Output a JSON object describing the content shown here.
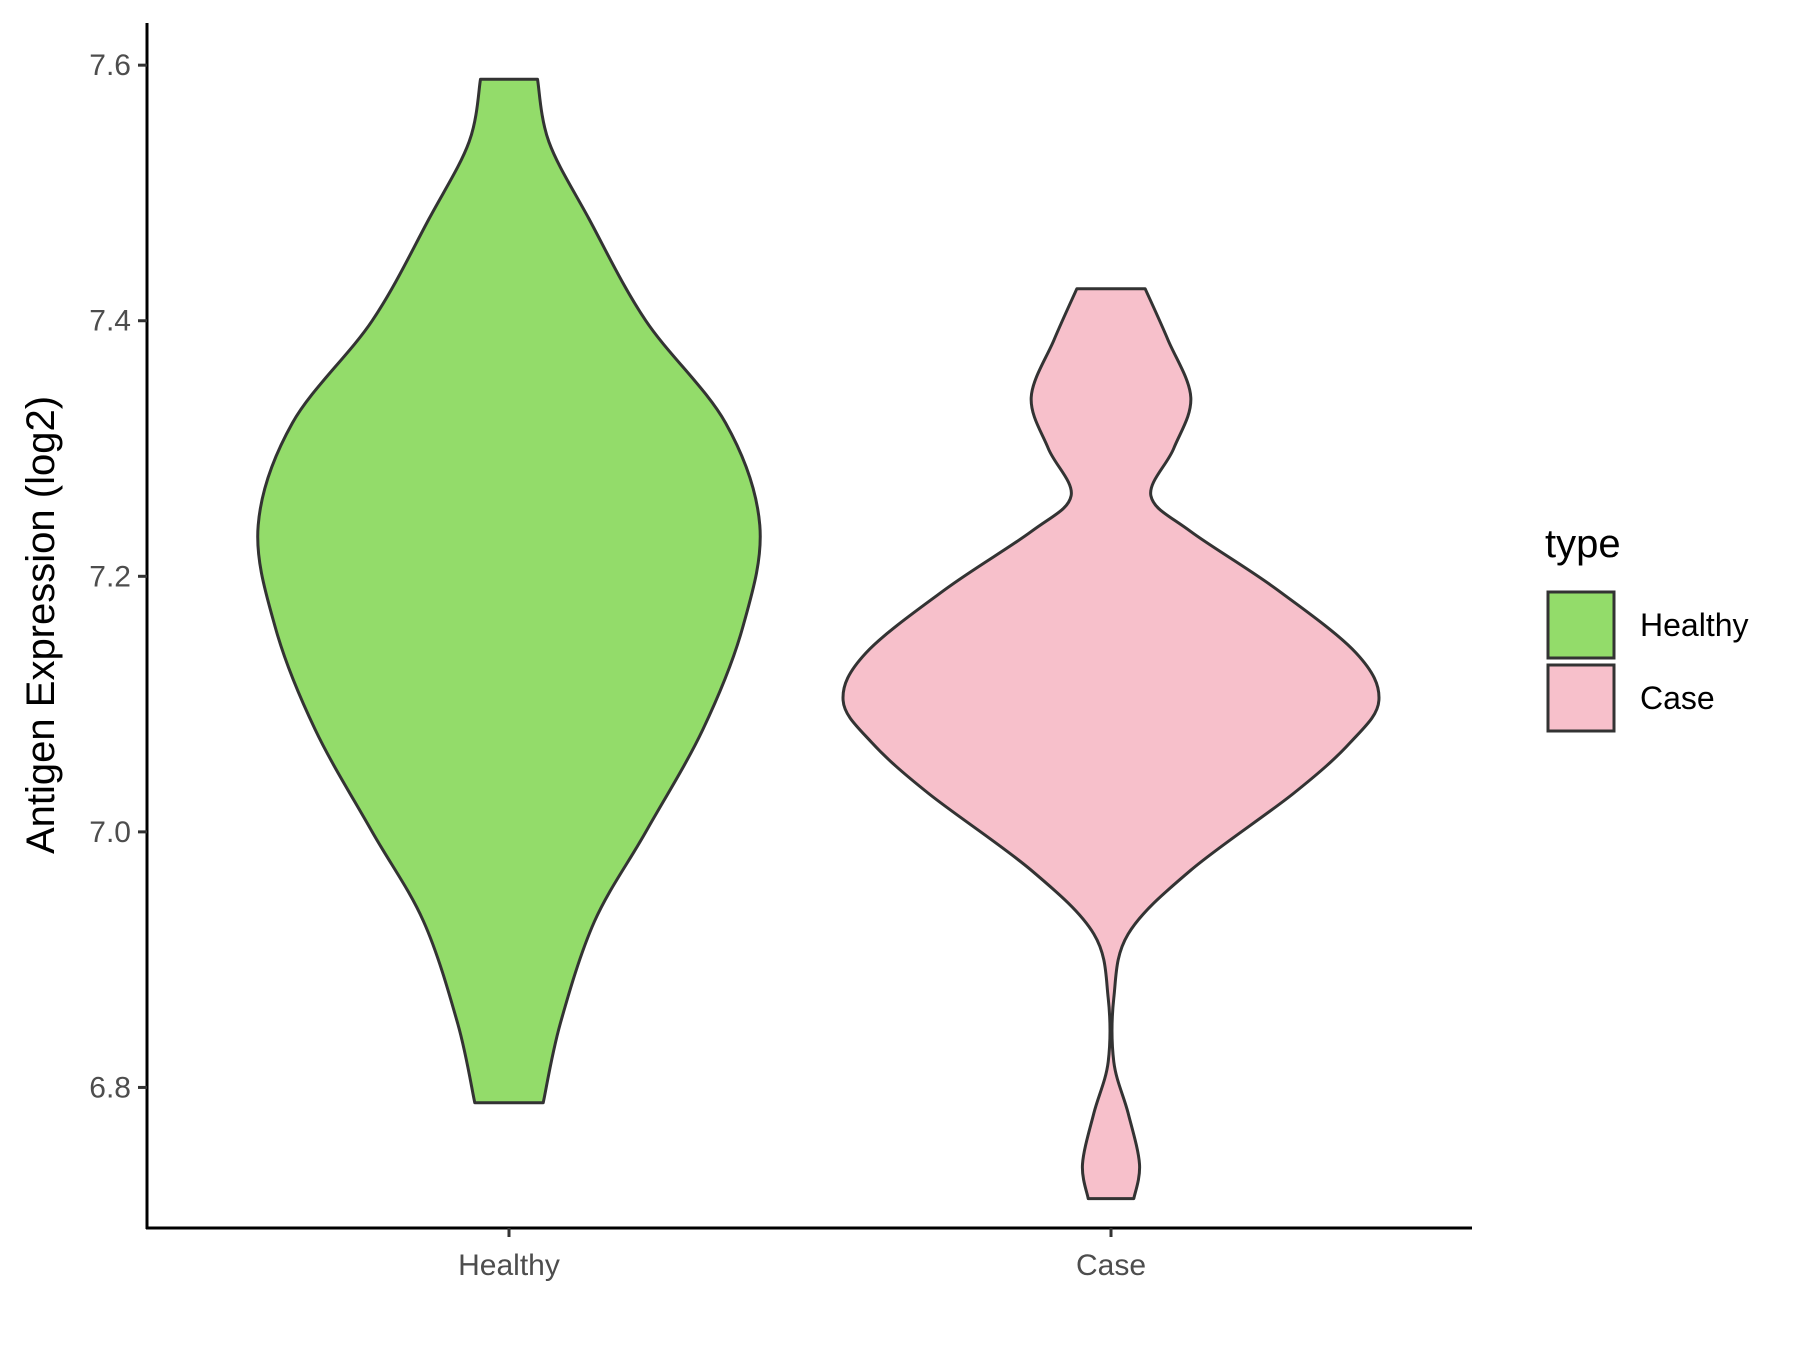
{
  "chart_data": {
    "type": "violin",
    "title": "",
    "xlabel": "",
    "ylabel": "Antigen Expression (log2)",
    "ylim": [
      6.69,
      7.633
    ],
    "yticks": [
      6.8,
      7.0,
      7.2,
      7.4,
      7.6
    ],
    "ytick_labels": [
      "6.8",
      "7.0",
      "7.2",
      "7.4",
      "7.6"
    ],
    "categories": [
      "Healthy",
      "Case"
    ],
    "grid": false,
    "legend": {
      "title": "type",
      "position": "right",
      "entries": [
        {
          "label": "Healthy",
          "color": "#93dc6a"
        },
        {
          "label": "Case",
          "color": "#f7c0cb"
        }
      ]
    },
    "series": [
      {
        "name": "Healthy",
        "color": "#93dc6a",
        "y_min": 6.788,
        "y_max": 7.589,
        "density_profile": [
          [
            6.788,
            0.06
          ],
          [
            6.85,
            0.09
          ],
          [
            6.93,
            0.15
          ],
          [
            7.0,
            0.24
          ],
          [
            7.08,
            0.34
          ],
          [
            7.16,
            0.41
          ],
          [
            7.24,
            0.44
          ],
          [
            7.32,
            0.38
          ],
          [
            7.4,
            0.24
          ],
          [
            7.48,
            0.14
          ],
          [
            7.54,
            0.07
          ],
          [
            7.589,
            0.05
          ]
        ]
      },
      {
        "name": "Case",
        "color": "#f7c0cb",
        "y_min": 6.713,
        "y_max": 7.425,
        "density_profile": [
          [
            6.713,
            0.04
          ],
          [
            6.74,
            0.05
          ],
          [
            6.78,
            0.03
          ],
          [
            6.82,
            0.005
          ],
          [
            6.87,
            0.005
          ],
          [
            6.92,
            0.03
          ],
          [
            6.97,
            0.14
          ],
          [
            7.03,
            0.32
          ],
          [
            7.07,
            0.42
          ],
          [
            7.103,
            0.47
          ],
          [
            7.14,
            0.43
          ],
          [
            7.19,
            0.29
          ],
          [
            7.235,
            0.14
          ],
          [
            7.263,
            0.07
          ],
          [
            7.3,
            0.11
          ],
          [
            7.34,
            0.14
          ],
          [
            7.385,
            0.1
          ],
          [
            7.425,
            0.06
          ]
        ]
      }
    ]
  }
}
